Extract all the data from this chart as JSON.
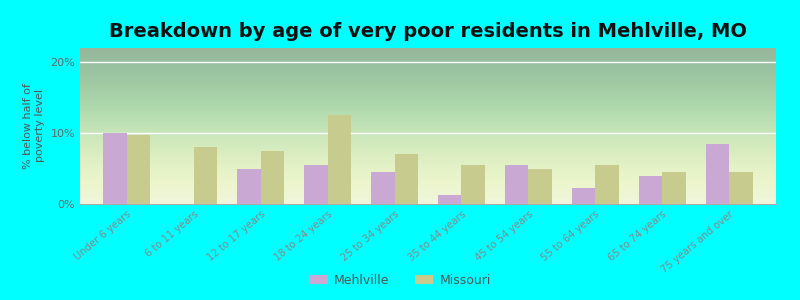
{
  "title": "Breakdown by age of very poor residents in Mehlville, MO",
  "ylabel": "% below half of\npoverty level",
  "categories": [
    "Under 6 years",
    "6 to 11 years",
    "12 to 17 years",
    "18 to 24 years",
    "25 to 34 years",
    "35 to 44 years",
    "45 to 54 years",
    "55 to 64 years",
    "65 to 74 years",
    "75 years and over"
  ],
  "mehlville_values": [
    10.0,
    0,
    5.0,
    5.5,
    4.5,
    1.2,
    5.5,
    2.2,
    4.0,
    8.5
  ],
  "missouri_values": [
    9.8,
    8.0,
    7.5,
    12.5,
    7.0,
    5.5,
    5.0,
    5.5,
    4.5,
    4.5
  ],
  "mehlville_color": "#c9a8d4",
  "missouri_color": "#c8cb8e",
  "background_color": "#00ffff",
  "ylim": [
    0,
    22
  ],
  "yticks": [
    0,
    10,
    20
  ],
  "ytick_labels": [
    "0%",
    "10%",
    "20%"
  ],
  "title_fontsize": 14,
  "axis_label_fontsize": 8,
  "bar_width": 0.35,
  "legend_labels": [
    "Mehlville",
    "Missouri"
  ]
}
